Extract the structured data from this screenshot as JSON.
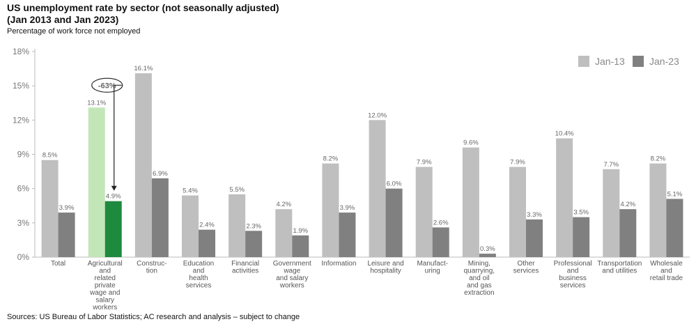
{
  "header": {
    "title_line1": "US unemployment rate by sector (not seasonally adjusted)",
    "title_line2": "(Jan 2013 and Jan 2023)",
    "subtitle": "Percentage of work force not employed"
  },
  "footer": {
    "source": "Sources: US Bureau of Labor Statistics; AC research and analysis – subject to change"
  },
  "chart_data": {
    "type": "bar",
    "ylim": [
      0,
      18
    ],
    "yticks": [
      0,
      3,
      6,
      9,
      12,
      15,
      18
    ],
    "ytick_labels": [
      "0%",
      "3%",
      "6%",
      "9%",
      "12%",
      "15%",
      "18%"
    ],
    "grid": false,
    "legend_position": "top-right",
    "categories": [
      [
        "Total"
      ],
      [
        "Agricultural",
        "and",
        "related",
        "private",
        "wage and",
        "salary",
        "workers"
      ],
      [
        "Construc-",
        "tion"
      ],
      [
        "Education",
        "and",
        "health",
        "services"
      ],
      [
        "Financial",
        "activities"
      ],
      [
        "Government",
        "wage",
        "and salary",
        "workers"
      ],
      [
        "Information"
      ],
      [
        "Leisure and",
        "hospitality"
      ],
      [
        "Manufact-",
        "uring"
      ],
      [
        "Mining,",
        "quarrying,",
        "and oil",
        "and gas",
        "extraction"
      ],
      [
        "Other",
        "services"
      ],
      [
        "Professional",
        "and",
        "business",
        "services"
      ],
      [
        "Transportation",
        "and utilities"
      ],
      [
        "Wholesale",
        "and",
        "retail trade"
      ]
    ],
    "series": [
      {
        "name": "Jan-13",
        "color": "#bfbfbf",
        "values": [
          8.5,
          13.1,
          16.1,
          5.4,
          5.5,
          4.2,
          8.2,
          12.0,
          7.9,
          9.6,
          7.9,
          10.4,
          7.7,
          8.2
        ],
        "labels": [
          "8.5%",
          "13.1%",
          "16.1%",
          "5.4%",
          "5.5%",
          "4.2%",
          "8.2%",
          "12.0%",
          "7.9%",
          "9.6%",
          "7.9%",
          "10.4%",
          "7.7%",
          "8.2%"
        ]
      },
      {
        "name": "Jan-23",
        "color": "#808080",
        "values": [
          3.9,
          4.9,
          6.9,
          2.4,
          2.3,
          1.9,
          3.9,
          6.0,
          2.6,
          0.3,
          3.3,
          3.5,
          4.2,
          5.1
        ],
        "labels": [
          "3.9%",
          "4.9%",
          "6.9%",
          "2.4%",
          "2.3%",
          "1.9%",
          "3.9%",
          "6.0%",
          "2.6%",
          "0.3%",
          "3.3%",
          "3.5%",
          "4.2%",
          "5.1%"
        ]
      }
    ],
    "highlight": {
      "category_index": 1,
      "colors": [
        "#c3e6b8",
        "#1e8a3e"
      ],
      "annotation": "-63%"
    }
  }
}
